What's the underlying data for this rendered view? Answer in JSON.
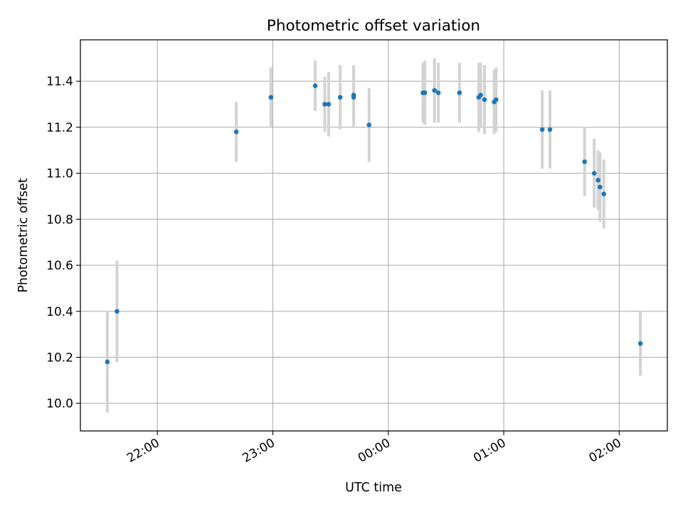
{
  "chart_data": {
    "type": "scatter",
    "title": "Photometric offset variation",
    "xlabel": "UTC time",
    "ylabel": "Photometric offset",
    "grid": true,
    "x_tick_labels": [
      "22:00",
      "23:00",
      "00:00",
      "01:00",
      "02:00"
    ],
    "x_tick_values": [
      "22:00",
      "23:00",
      "00:00",
      "01:00",
      "02:00"
    ],
    "xlim": [
      "21:20",
      "02:25"
    ],
    "y_tick_labels": [
      "10.0",
      "10.2",
      "10.4",
      "10.6",
      "10.8",
      "11.0",
      "11.2",
      "11.4"
    ],
    "y_tick_values": [
      10.0,
      10.2,
      10.4,
      10.6,
      10.8,
      11.0,
      11.2,
      11.4
    ],
    "ylim": [
      9.88,
      11.58
    ],
    "series": [
      {
        "marker_color": "#1f77b4",
        "errorbar_color": "#d3d3d3",
        "points": [
          {
            "x": "21:34",
            "y": 10.18,
            "yerr": 0.22
          },
          {
            "x": "21:39",
            "y": 10.4,
            "yerr": 0.22
          },
          {
            "x": "22:41",
            "y": 11.18,
            "yerr": 0.13
          },
          {
            "x": "22:59",
            "y": 11.33,
            "yerr": 0.13
          },
          {
            "x": "23:22",
            "y": 11.38,
            "yerr": 0.11
          },
          {
            "x": "23:27",
            "y": 11.3,
            "yerr": 0.12
          },
          {
            "x": "23:29",
            "y": 11.3,
            "yerr": 0.14
          },
          {
            "x": "23:35",
            "y": 11.33,
            "yerr": 0.14
          },
          {
            "x": "23:42",
            "y": 11.34,
            "yerr": 0.13
          },
          {
            "x": "23:42",
            "y": 11.33,
            "yerr": 0.13
          },
          {
            "x": "23:50",
            "y": 11.21,
            "yerr": 0.16
          },
          {
            "x": "00:18",
            "y": 11.35,
            "yerr": 0.13
          },
          {
            "x": "00:19",
            "y": 11.35,
            "yerr": 0.14
          },
          {
            "x": "00:24",
            "y": 11.36,
            "yerr": 0.14
          },
          {
            "x": "00:26",
            "y": 11.35,
            "yerr": 0.13
          },
          {
            "x": "00:37",
            "y": 11.35,
            "yerr": 0.13
          },
          {
            "x": "00:47",
            "y": 11.33,
            "yerr": 0.15
          },
          {
            "x": "00:48",
            "y": 11.34,
            "yerr": 0.14
          },
          {
            "x": "00:50",
            "y": 11.32,
            "yerr": 0.15
          },
          {
            "x": "00:55",
            "y": 11.31,
            "yerr": 0.14
          },
          {
            "x": "00:56",
            "y": 11.32,
            "yerr": 0.14
          },
          {
            "x": "01:20",
            "y": 11.19,
            "yerr": 0.17
          },
          {
            "x": "01:24",
            "y": 11.19,
            "yerr": 0.17
          },
          {
            "x": "01:42",
            "y": 11.05,
            "yerr": 0.15
          },
          {
            "x": "01:47",
            "y": 11.0,
            "yerr": 0.15
          },
          {
            "x": "01:49",
            "y": 10.97,
            "yerr": 0.13
          },
          {
            "x": "01:50",
            "y": 10.94,
            "yerr": 0.15
          },
          {
            "x": "01:52",
            "y": 10.91,
            "yerr": 0.15
          },
          {
            "x": "02:11",
            "y": 10.26,
            "yerr": 0.14
          }
        ]
      }
    ]
  }
}
